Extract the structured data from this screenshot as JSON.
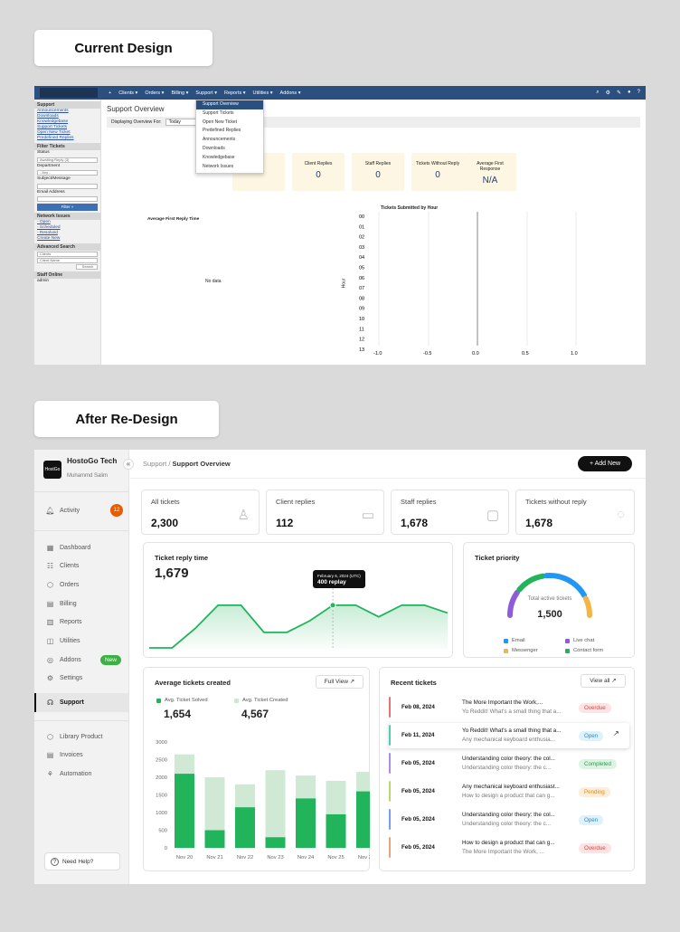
{
  "labels": {
    "current": "Current Design",
    "after": "After Re-Design"
  },
  "old": {
    "nav": [
      "+",
      "Clients ▾",
      "Orders ▾",
      "Billing ▾",
      "Support ▾",
      "Reports ▾",
      "Utilities ▾",
      "Addons ▾"
    ],
    "sidebar": {
      "support_title": "Support",
      "support_links": [
        "Announcements",
        "Downloads",
        "Knowledgebase",
        "Support Tickets",
        "Open New Ticket",
        "Predefined Replies"
      ],
      "filter_title": "Filter Tickets",
      "status_label": "Status",
      "status_value": "Awaiting Reply (3)",
      "department_label": "Department",
      "department_value": "- Any -",
      "subject_label": "Subject/Message",
      "email_label": "Email Address",
      "filter_btn": "Filter »",
      "network_title": "Network Issues",
      "network_links": [
        "- Open",
        "- Scheduled",
        "- Resolved",
        "Create New"
      ],
      "adv_title": "Advanced Search",
      "adv_select": "Clients",
      "adv_input": "Client Name",
      "search_btn": "Search",
      "staff_title": "Staff Online",
      "staff_name": "admin"
    },
    "page_title": "Support Overview",
    "display_label": "Displaying Overview For:",
    "display_value": "Today",
    "dropdown": [
      "Support Overview",
      "Support Tickets",
      "Open New Ticket",
      "Predefined Replies",
      "Announcements",
      "Downloads",
      "Knowledgebase",
      "Network Issues"
    ],
    "stats": [
      {
        "label": "...ets",
        "value": ""
      },
      {
        "label": "Client Replies",
        "value": "0"
      },
      {
        "label": "Staff Replies",
        "value": "0"
      },
      {
        "label": "Tickets Without Reply",
        "value": "0"
      },
      {
        "label": "Average First Response",
        "value": "N/A"
      }
    ],
    "chart1_title": "Average First Reply Time",
    "no_data": "No data",
    "chart2_title": "Tickets Submitted by Hour",
    "chart2_ylabel": "Hour",
    "hours": [
      "00",
      "01",
      "02",
      "03",
      "04",
      "05",
      "06",
      "07",
      "08",
      "09",
      "10",
      "11",
      "12",
      "13"
    ],
    "xticks": [
      "-1.0",
      "-0.5",
      "0.0",
      "0.5",
      "1.0"
    ]
  },
  "new": {
    "brand": {
      "logo": "HostGo",
      "name": "HostoGo Tech",
      "user": "Muhammd Salim"
    },
    "collapse_icon": "«",
    "activity": {
      "label": "Activity",
      "badge": "12"
    },
    "menu": [
      {
        "label": "Dashboard",
        "icon": "▦"
      },
      {
        "label": "Clients",
        "icon": "☷"
      },
      {
        "label": "Orders",
        "icon": "⬡"
      },
      {
        "label": "Billing",
        "icon": "▤"
      },
      {
        "label": "Reports",
        "icon": "▥"
      },
      {
        "label": "Utilities",
        "icon": "◫"
      },
      {
        "label": "Addons",
        "icon": "◎",
        "badge": "New"
      },
      {
        "label": "Settings",
        "icon": "⚙"
      },
      {
        "label": "Support",
        "icon": "☊"
      }
    ],
    "menu2": [
      {
        "label": "Library Product",
        "icon": "⬡"
      },
      {
        "label": "Invoices",
        "icon": "▤"
      },
      {
        "label": "Automation",
        "icon": "⚘"
      }
    ],
    "help": "Need Help?",
    "breadcrumb": {
      "parent": "Support",
      "sep": " / ",
      "current": "Support Overview"
    },
    "add_button": "+  Add New",
    "stats": [
      {
        "label": "All tickets",
        "value": "2,300",
        "icon": "♙"
      },
      {
        "label": "Client replies",
        "value": "112",
        "icon": "▭"
      },
      {
        "label": "Staff replies",
        "value": "1,678",
        "icon": "▢"
      },
      {
        "label": "Tickets without reply",
        "value": "1,678",
        "icon": "◌"
      }
    ],
    "reply_time": {
      "title": "Ticket reply time",
      "value": "1,679",
      "tooltip_date": "February 6, 2024 (UTC)",
      "tooltip_value": "400 replay"
    },
    "priority": {
      "title": "Ticket priority",
      "center_label": "Total active tickets",
      "center_value": "1,500",
      "legend": [
        {
          "name": "Email",
          "color": "#2196f3"
        },
        {
          "name": "Live chat",
          "color": "#8e5bd9"
        },
        {
          "name": "Messenger",
          "color": "#f5b445"
        },
        {
          "name": "Contact form",
          "color": "#22b45a"
        }
      ]
    },
    "avg": {
      "title": "Average tickets created",
      "full_view": "Full View ↗",
      "legend_solved": "Avg. Ticket Solved",
      "solved_value": "1,654",
      "legend_created": "Avg. Ticket Created",
      "created_value": "4,567"
    },
    "recent": {
      "title": "Recent tickets",
      "view_all": "View all ↗",
      "open_icon": "↗",
      "rows": [
        {
          "date": "Feb 08, 2024",
          "title": "The More Important the Work,...",
          "sub": "Yo Reddit! What's a small thing that a...",
          "status": "Overdue",
          "bar": "#e57373"
        },
        {
          "date": "Feb 11, 2024",
          "title": "Yo Reddit! What's a small thing that a...",
          "sub": "Any mechanical keyboard enthusia...",
          "status": "Open",
          "bar": "#4dd0b0"
        },
        {
          "date": "Feb 05, 2024",
          "title": "Understanding color theory: the col...",
          "sub": "Understanding color theory: the c...",
          "status": "Completed",
          "bar": "#a98ee8"
        },
        {
          "date": "Feb 05, 2024",
          "title": "Any mechanical keyboard enthusiast...",
          "sub": "How to design a product that can g...",
          "status": "Pending",
          "bar": "#b7d96a"
        },
        {
          "date": "Feb 05, 2024",
          "title": "Understanding color theory: the col...",
          "sub": "Understanding color theory: the c...",
          "status": "Open",
          "bar": "#7a9cf0"
        },
        {
          "date": "Feb 05, 2024",
          "title": "How to design a product that can g...",
          "sub": "The More Important the Work, ...",
          "status": "Overdue",
          "bar": "#e8a27a"
        }
      ]
    }
  },
  "chart_data": [
    {
      "type": "line",
      "title": "Ticket reply time",
      "series": [
        {
          "values": [
            0,
            0,
            2.5,
            5.5,
            5.5,
            2.0,
            2.0,
            3.5,
            5.5,
            5.5,
            4.0,
            5.5,
            5.5,
            4.5
          ]
        }
      ],
      "ylim": [
        0,
        7
      ]
    },
    {
      "type": "bar",
      "title": "Average tickets created",
      "categories": [
        "Nov 20",
        "Nov 21",
        "Nov 22",
        "Nov 23",
        "Nov 24",
        "Nov 25",
        "Nov 26"
      ],
      "series": [
        {
          "name": "Avg. Ticket Solved",
          "values": [
            2100,
            500,
            1150,
            300,
            1400,
            950,
            1600
          ]
        },
        {
          "name": "Avg. Ticket Created",
          "values": [
            2650,
            2000,
            1800,
            2200,
            2050,
            1900,
            2150
          ]
        }
      ],
      "yticks": [
        "0",
        "500",
        "1000",
        "1500",
        "2000",
        "2500",
        "3000"
      ],
      "ylim": [
        0,
        3000
      ]
    },
    {
      "type": "pie",
      "title": "Ticket priority",
      "series": [
        {
          "name": "Email",
          "values": [
            35
          ]
        },
        {
          "name": "Live chat",
          "values": [
            15
          ]
        },
        {
          "name": "Messenger",
          "values": [
            12
          ]
        },
        {
          "name": "Contact form",
          "values": [
            10
          ]
        }
      ]
    }
  ]
}
